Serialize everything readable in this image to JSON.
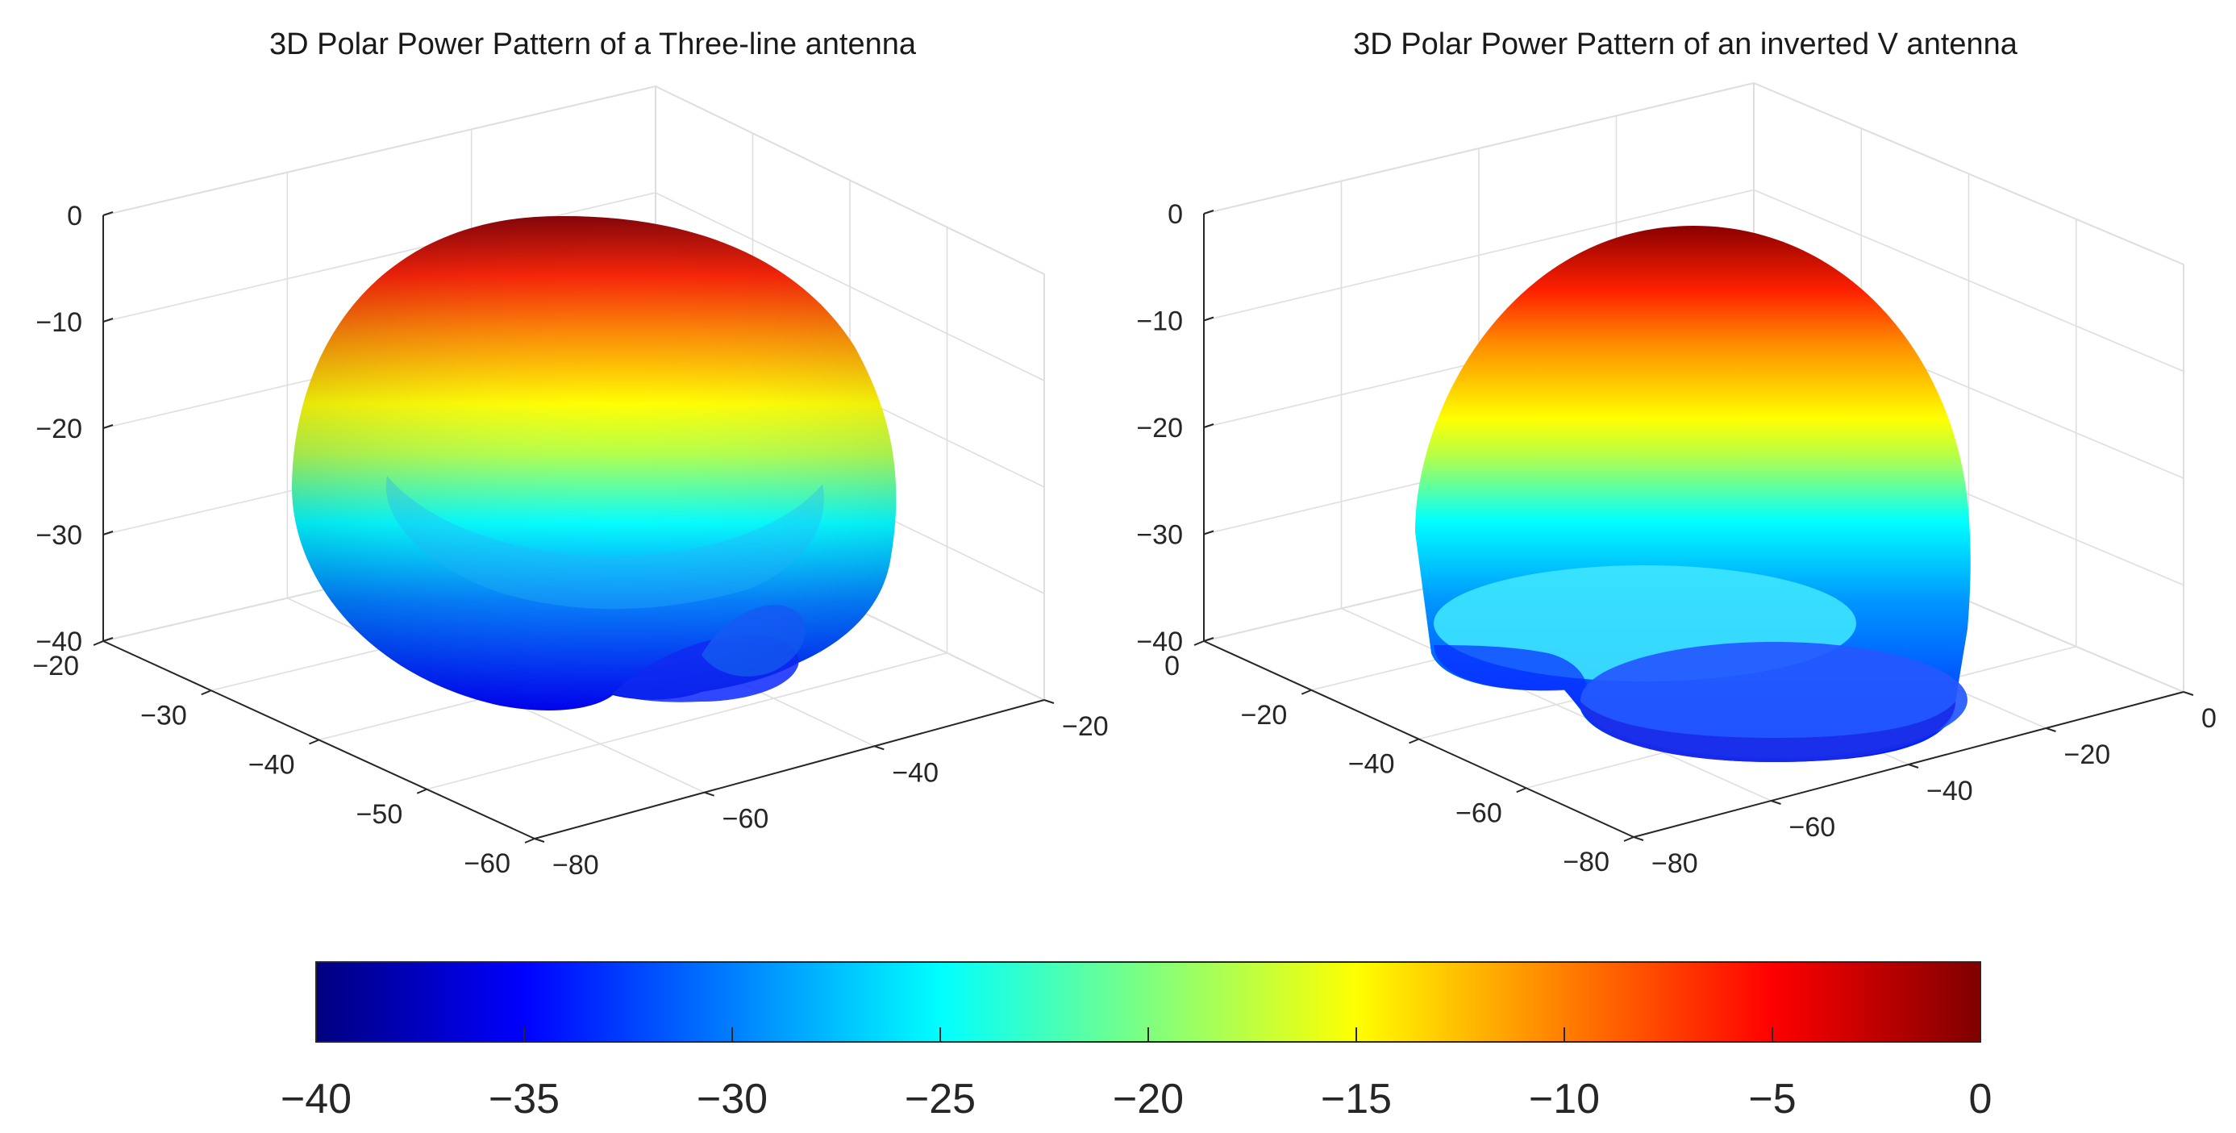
{
  "chart_data": [
    {
      "type": "surface3d",
      "title": "3D Polar Power Pattern of a Three-line antenna",
      "zlabel": "",
      "xlabel": "",
      "ylabel": "",
      "z_ticks": [
        "0",
        "−10",
        "−20",
        "−30",
        "−40"
      ],
      "zlim": [
        -40,
        0
      ],
      "x_ticks": [
        "−20",
        "−30",
        "−40",
        "−50",
        "−60"
      ],
      "xlim": [
        -60,
        -20
      ],
      "y_ticks": [
        "−80",
        "−60",
        "−40",
        "−20"
      ],
      "ylim": [
        -80,
        -20
      ],
      "colormap": "jet",
      "grid": true
    },
    {
      "type": "surface3d",
      "title": "3D Polar Power Pattern of an inverted V antenna",
      "zlabel": "",
      "xlabel": "",
      "ylabel": "",
      "z_ticks": [
        "0",
        "−10",
        "−20",
        "−30",
        "−40"
      ],
      "zlim": [
        -40,
        0
      ],
      "x_ticks": [
        "0",
        "−20",
        "−40",
        "−60",
        "−80"
      ],
      "xlim": [
        -80,
        0
      ],
      "y_ticks": [
        "−80",
        "−60",
        "−40",
        "−20",
        "0"
      ],
      "ylim": [
        -80,
        0
      ],
      "colormap": "jet",
      "grid": true
    }
  ],
  "colorbar": {
    "min": -40,
    "max": 0,
    "ticks": [
      "−40",
      "−35",
      "−30",
      "−25",
      "−20",
      "−15",
      "−10",
      "−5",
      "0"
    ],
    "colors": [
      "#00007f",
      "#0000ff",
      "#007fff",
      "#00ffff",
      "#7fff7f",
      "#ffff00",
      "#ff7f00",
      "#ff0000",
      "#7f0000"
    ]
  }
}
